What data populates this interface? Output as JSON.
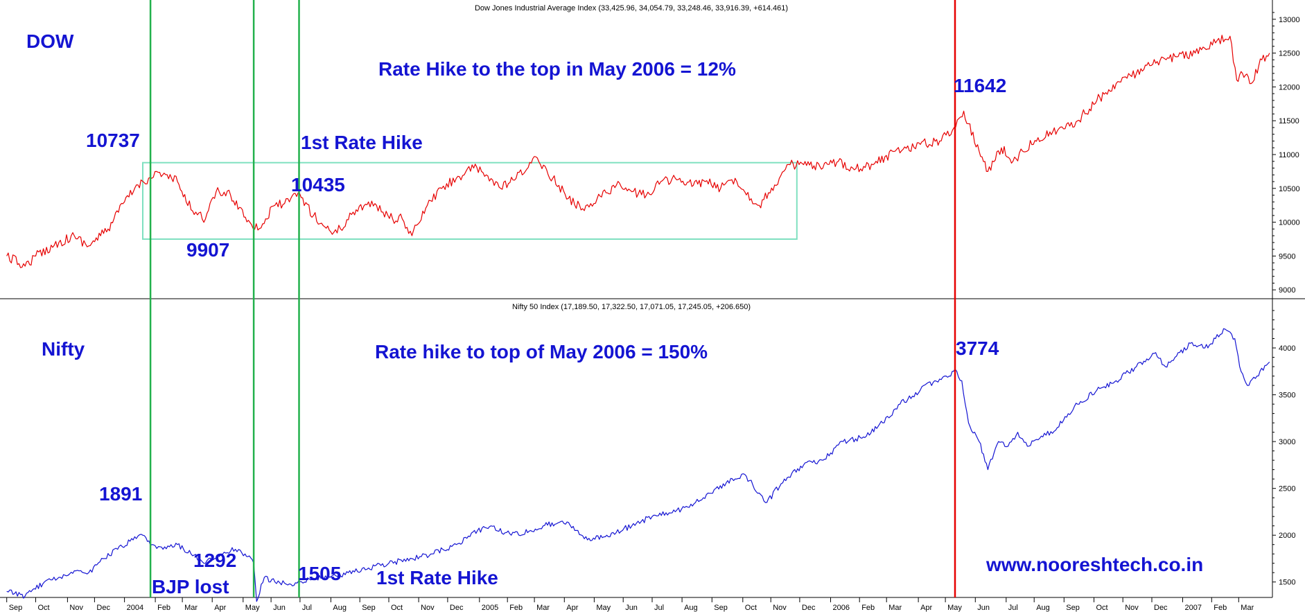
{
  "chart_data": [
    {
      "type": "line",
      "title": "Dow Jones Industrial Average Index (33,425.96, 34,054.79, 33,248.46, 33,916.39, +614.461)",
      "label": "DOW",
      "ylim": [
        8900,
        13100
      ],
      "yticks": [
        9000,
        9500,
        10000,
        10500,
        11000,
        11500,
        12000,
        12500,
        13000
      ],
      "ytick_labels": [
        "9000",
        "9500",
        "10000",
        "10500",
        "11000",
        "11500",
        "12000",
        "12500",
        "13000"
      ],
      "grid": false,
      "color": "#e60000",
      "series": [
        {
          "x": [
            "2003-09-01",
            "2003-09-20",
            "2003-10-01",
            "2003-10-25",
            "2003-11-10",
            "2003-11-25",
            "2003-12-15",
            "2004-01-01",
            "2004-01-15",
            "2004-01-26",
            "2004-02-05",
            "2004-02-25",
            "2004-03-05",
            "2004-03-15",
            "2004-03-25",
            "2004-04-05",
            "2004-04-20",
            "2004-05-10",
            "2004-05-20",
            "2004-06-05",
            "2004-06-20",
            "2004-06-29",
            "2004-07-15",
            "2004-07-25",
            "2004-08-05",
            "2004-08-12",
            "2004-08-25",
            "2004-09-10",
            "2004-09-25",
            "2004-10-05",
            "2004-10-15",
            "2004-10-25",
            "2004-11-10",
            "2004-11-25",
            "2004-12-10",
            "2004-12-28",
            "2005-01-10",
            "2005-01-25",
            "2005-02-10",
            "2005-03-04",
            "2005-03-20",
            "2005-04-05",
            "2005-04-20",
            "2005-05-05",
            "2005-05-25",
            "2005-06-10",
            "2005-06-25",
            "2005-07-10",
            "2005-07-25",
            "2005-08-05",
            "2005-08-25",
            "2005-09-10",
            "2005-09-25",
            "2005-10-05",
            "2005-10-20",
            "2005-11-05",
            "2005-11-21",
            "2005-12-05",
            "2005-12-25",
            "2006-01-10",
            "2006-01-25",
            "2006-02-15",
            "2006-03-10",
            "2006-04-05",
            "2006-04-25",
            "2006-05-10",
            "2006-05-20",
            "2006-06-05",
            "2006-06-14",
            "2006-06-28",
            "2006-07-10",
            "2006-07-20",
            "2006-08-05",
            "2006-08-25",
            "2006-09-15",
            "2006-10-05",
            "2006-10-25",
            "2006-11-15",
            "2006-12-05",
            "2006-12-25",
            "2007-01-15",
            "2007-02-05",
            "2007-02-20",
            "2007-02-27",
            "2007-03-05",
            "2007-03-14",
            "2007-03-25",
            "2007-04-02"
          ],
          "values": [
            9500,
            9350,
            9500,
            9700,
            9800,
            9650,
            9900,
            10300,
            10550,
            10650,
            10737,
            10600,
            10300,
            10150,
            10050,
            10450,
            10400,
            10000,
            9907,
            10250,
            10300,
            10435,
            10100,
            9950,
            9850,
            9900,
            10150,
            10300,
            10150,
            10050,
            10050,
            9800,
            10250,
            10500,
            10650,
            10800,
            10700,
            10500,
            10650,
            10950,
            10650,
            10350,
            10200,
            10350,
            10550,
            10450,
            10400,
            10600,
            10650,
            10550,
            10600,
            10500,
            10650,
            10450,
            10250,
            10550,
            10850,
            10850,
            10800,
            10900,
            10800,
            10850,
            11050,
            11150,
            11200,
            11400,
            11642,
            11050,
            10750,
            11100,
            10900,
            11050,
            11250,
            11350,
            11500,
            11800,
            12050,
            12200,
            12350,
            12450,
            12500,
            12650,
            12750,
            12100,
            12200,
            12050,
            12400,
            12500
          ]
        }
      ],
      "annotations": [
        {
          "text": "DOW"
        },
        {
          "text": "Rate Hike to the top in May 2006 = 12%"
        },
        {
          "text": "10737"
        },
        {
          "text": "1st Rate Hike"
        },
        {
          "text": "10435"
        },
        {
          "text": "9907"
        },
        {
          "text": "11642"
        }
      ],
      "box": {
        "x": [
          "2004-01-20",
          "2005-11-28"
        ],
        "y": [
          9750,
          10880
        ],
        "color": "#7fe0c0"
      }
    },
    {
      "type": "line",
      "title": "Nifty 50 Index (17,189.50, 17,322.50, 17,071.05, 17,245.05, +206.650)",
      "label": "Nifty",
      "ylim": [
        1350,
        4400
      ],
      "yticks": [
        1500,
        2000,
        2500,
        3000,
        3500,
        4000
      ],
      "ytick_labels": [
        "1500",
        "2000",
        "2500",
        "3000",
        "3500",
        "4000"
      ],
      "grid": false,
      "color": "#1414d2",
      "series": [
        {
          "x": [
            "2003-09-01",
            "2003-09-20",
            "2003-10-10",
            "2003-10-25",
            "2003-11-10",
            "2003-11-25",
            "2003-12-10",
            "2003-12-25",
            "2004-01-10",
            "2004-01-20",
            "2004-01-28",
            "2004-02-10",
            "2004-02-25",
            "2004-03-10",
            "2004-03-25",
            "2004-04-10",
            "2004-04-25",
            "2004-05-05",
            "2004-05-14",
            "2004-05-17",
            "2004-05-25",
            "2004-06-05",
            "2004-06-20",
            "2004-07-01",
            "2004-07-15",
            "2004-08-01",
            "2004-08-20",
            "2004-09-10",
            "2004-10-01",
            "2004-10-25",
            "2004-11-15",
            "2004-12-10",
            "2005-01-01",
            "2005-01-15",
            "2005-02-05",
            "2005-02-25",
            "2005-03-10",
            "2005-03-30",
            "2005-04-15",
            "2005-04-25",
            "2005-05-15",
            "2005-06-10",
            "2005-07-01",
            "2005-07-25",
            "2005-08-15",
            "2005-09-05",
            "2005-09-25",
            "2005-10-05",
            "2005-10-20",
            "2005-10-28",
            "2005-11-15",
            "2005-12-05",
            "2005-12-25",
            "2006-01-15",
            "2006-02-05",
            "2006-02-25",
            "2006-03-15",
            "2006-04-05",
            "2006-04-20",
            "2006-05-05",
            "2006-05-11",
            "2006-05-18",
            "2006-05-25",
            "2006-06-05",
            "2006-06-14",
            "2006-06-25",
            "2006-07-05",
            "2006-07-15",
            "2006-07-25",
            "2006-08-10",
            "2006-08-25",
            "2006-09-15",
            "2006-10-05",
            "2006-10-25",
            "2006-11-15",
            "2006-12-05",
            "2006-12-15",
            "2006-12-25",
            "2007-01-10",
            "2007-01-25",
            "2007-02-05",
            "2007-02-15",
            "2007-02-25",
            "2007-03-02",
            "2007-03-10",
            "2007-03-20",
            "2007-04-02"
          ],
          "values": [
            1400,
            1350,
            1500,
            1550,
            1620,
            1600,
            1750,
            1850,
            1950,
            2000,
            1891,
            1850,
            1900,
            1800,
            1700,
            1800,
            1850,
            1800,
            1700,
            1292,
            1550,
            1500,
            1480,
            1505,
            1540,
            1550,
            1600,
            1650,
            1700,
            1750,
            1800,
            1900,
            2050,
            2100,
            2000,
            2050,
            2100,
            2150,
            2050,
            1950,
            2000,
            2100,
            2200,
            2250,
            2350,
            2500,
            2600,
            2650,
            2450,
            2350,
            2600,
            2750,
            2800,
            3000,
            3050,
            3200,
            3400,
            3550,
            3650,
            3700,
            3774,
            3650,
            3200,
            3000,
            2700,
            3000,
            2950,
            3100,
            2950,
            3050,
            3150,
            3400,
            3550,
            3650,
            3800,
            3950,
            3800,
            3900,
            4050,
            4000,
            4100,
            4200,
            4100,
            3800,
            3600,
            3700,
            3850
          ]
        }
      ],
      "annotations": [
        {
          "text": "Nifty"
        },
        {
          "text": "Rate hike to top of May 2006 = 150%"
        },
        {
          "text": "1891"
        },
        {
          "text": "3774"
        },
        {
          "text": "1292"
        },
        {
          "text": "BJP lost"
        },
        {
          "text": "1505"
        },
        {
          "text": "1st Rate Hike"
        },
        {
          "text": "www.nooreshtech.co.in"
        }
      ]
    }
  ],
  "xaxis": {
    "range": [
      "2003-08-25",
      "2007-04-05"
    ],
    "ticks": [
      {
        "date": "2003-09-01",
        "label": "Sep"
      },
      {
        "date": "2003-10-01",
        "label": "Oct"
      },
      {
        "date": "2003-11-03",
        "label": "Nov"
      },
      {
        "date": "2003-12-01",
        "label": "Dec"
      },
      {
        "date": "2004-01-01",
        "label": "2004"
      },
      {
        "date": "2004-02-02",
        "label": "Feb"
      },
      {
        "date": "2004-03-01",
        "label": "Mar"
      },
      {
        "date": "2004-04-01",
        "label": "Apr"
      },
      {
        "date": "2004-05-03",
        "label": "May"
      },
      {
        "date": "2004-06-01",
        "label": "Jun"
      },
      {
        "date": "2004-07-01",
        "label": "Jul"
      },
      {
        "date": "2004-08-02",
        "label": "Aug"
      },
      {
        "date": "2004-09-01",
        "label": "Sep"
      },
      {
        "date": "2004-10-01",
        "label": "Oct"
      },
      {
        "date": "2004-11-01",
        "label": "Nov"
      },
      {
        "date": "2004-12-01",
        "label": "Dec"
      },
      {
        "date": "2005-01-03",
        "label": "2005"
      },
      {
        "date": "2005-02-01",
        "label": "Feb"
      },
      {
        "date": "2005-03-01",
        "label": "Mar"
      },
      {
        "date": "2005-04-01",
        "label": "Apr"
      },
      {
        "date": "2005-05-02",
        "label": "May"
      },
      {
        "date": "2005-06-01",
        "label": "Jun"
      },
      {
        "date": "2005-07-01",
        "label": "Jul"
      },
      {
        "date": "2005-08-01",
        "label": "Aug"
      },
      {
        "date": "2005-09-01",
        "label": "Sep"
      },
      {
        "date": "2005-10-03",
        "label": "Oct"
      },
      {
        "date": "2005-11-01",
        "label": "Nov"
      },
      {
        "date": "2005-12-01",
        "label": "Dec"
      },
      {
        "date": "2006-01-02",
        "label": "2006"
      },
      {
        "date": "2006-02-01",
        "label": "Feb"
      },
      {
        "date": "2006-03-01",
        "label": "Mar"
      },
      {
        "date": "2006-04-03",
        "label": "Apr"
      },
      {
        "date": "2006-05-01",
        "label": "May"
      },
      {
        "date": "2006-06-01",
        "label": "Jun"
      },
      {
        "date": "2006-07-03",
        "label": "Jul"
      },
      {
        "date": "2006-08-01",
        "label": "Aug"
      },
      {
        "date": "2006-09-01",
        "label": "Sep"
      },
      {
        "date": "2006-10-02",
        "label": "Oct"
      },
      {
        "date": "2006-11-01",
        "label": "Nov"
      },
      {
        "date": "2006-12-01",
        "label": "Dec"
      },
      {
        "date": "2007-01-02",
        "label": "2007"
      },
      {
        "date": "2007-02-01",
        "label": "Feb"
      },
      {
        "date": "2007-03-01",
        "label": "Mar"
      }
    ]
  },
  "markers": [
    {
      "date": "2004-01-28",
      "color": "#22b14c",
      "label": "green-line-jan-2004"
    },
    {
      "date": "2004-05-14",
      "color": "#22b14c",
      "label": "green-line-may-2004"
    },
    {
      "date": "2004-06-30",
      "color": "#22b14c",
      "label": "green-line-jun-2004"
    },
    {
      "date": "2006-05-11",
      "color": "#e60000",
      "label": "red-line-may-2006"
    }
  ]
}
